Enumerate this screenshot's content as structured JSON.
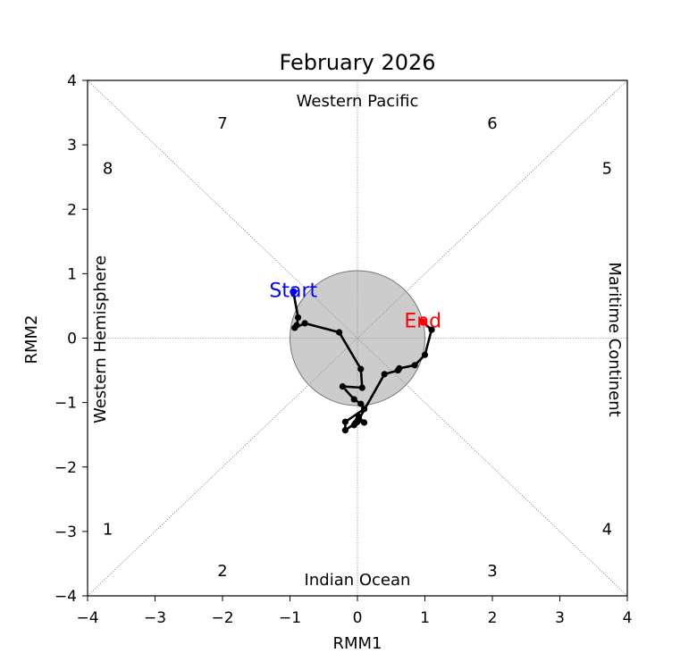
{
  "chart_data": {
    "type": "line",
    "title": "February 2026",
    "xlabel": "RMM1",
    "ylabel": "RMM2",
    "xlim": [
      -4,
      4
    ],
    "ylim": [
      -4,
      4
    ],
    "xticks": [
      -4,
      -3,
      -2,
      -1,
      0,
      1,
      2,
      3,
      4
    ],
    "yticks": [
      -4,
      -3,
      -2,
      -1,
      0,
      1,
      2,
      3,
      4
    ],
    "xtick_labels": [
      "−4",
      "−3",
      "−2",
      "−1",
      "0",
      "1",
      "2",
      "3",
      "4"
    ],
    "ytick_labels": [
      "−4",
      "−3",
      "−2",
      "−1",
      "0",
      "1",
      "2",
      "3",
      "4"
    ],
    "unit_circle_radius": 1,
    "regions": {
      "top": "Western Pacific",
      "bottom": "Indian Ocean",
      "left": "Western Hemisphere",
      "right": "Maritime Continent"
    },
    "phases": [
      {
        "label": "1",
        "x": -3.7,
        "y": -2.95
      },
      {
        "label": "2",
        "x": -2.0,
        "y": -3.6
      },
      {
        "label": "3",
        "x": 2.0,
        "y": -3.6
      },
      {
        "label": "4",
        "x": 3.7,
        "y": -2.95
      },
      {
        "label": "5",
        "x": 3.7,
        "y": 2.65
      },
      {
        "label": "6",
        "x": 2.0,
        "y": 3.35
      },
      {
        "label": "7",
        "x": -2.0,
        "y": 3.35
      },
      {
        "label": "8",
        "x": -3.7,
        "y": 2.65
      }
    ],
    "start_label": "Start",
    "end_label": "End",
    "start_color": "#0000ff",
    "end_color": "#ff0000",
    "line_color": "#000000",
    "series": [
      {
        "x": [
          -0.95,
          -0.88,
          -0.9,
          -0.93,
          -0.78,
          -0.27,
          0.05,
          0.07,
          -0.22,
          -0.05,
          0.05,
          0.1,
          -0.18,
          -0.18,
          -0.03,
          0.02,
          0.1,
          0.0,
          -0.05,
          0.0,
          0.4,
          0.6,
          0.62,
          0.85,
          1.0,
          1.1,
          0.97
        ],
        "y": [
          0.72,
          0.32,
          0.2,
          0.16,
          0.23,
          0.09,
          -0.48,
          -0.77,
          -0.75,
          -0.95,
          -1.02,
          -1.1,
          -1.3,
          -1.43,
          -1.32,
          -1.22,
          -1.31,
          -1.28,
          -1.35,
          -1.3,
          -0.56,
          -0.5,
          -0.47,
          -0.42,
          -0.26,
          0.13,
          0.25
        ]
      }
    ]
  }
}
